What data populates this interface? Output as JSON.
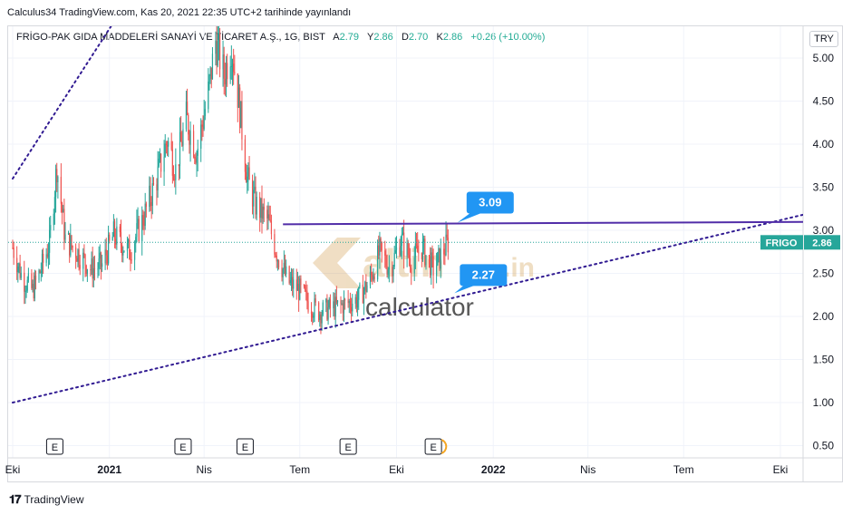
{
  "header": {
    "caption": "Calculus34 TradingView.com, Kas 20, 2021 22:35 UTC+2 tarihinde yayınlandı",
    "symbol_line": "FRİGO-PAK GIDA MADDELERİ SANAYİ VE TİCARET A.Ş., 1G, BIST",
    "ohlc": [
      {
        "label": "A",
        "value": "2.79"
      },
      {
        "label": "Y",
        "value": "2.86"
      },
      {
        "label": "D",
        "value": "2.70"
      },
      {
        "label": "K",
        "value": "2.86"
      }
    ],
    "change": "+0.26 (+10.00%)",
    "currency": "TRY"
  },
  "footer": {
    "brand": "TradingView"
  },
  "watermark": {
    "line1": "altin",
    "line1_suffix": ".in",
    "line2": "calculator"
  },
  "colors": {
    "up": "#26a69a",
    "down": "#ef5350",
    "trend": "#311b92",
    "resistance": "#512da8",
    "callout": "#2196f3",
    "price_tag": "#26a69a"
  },
  "chart_data": {
    "type": "candlestick",
    "symbol": "FRIGO",
    "last_price": 2.86,
    "yticks": [
      0.5,
      1.0,
      1.5,
      2.0,
      2.5,
      3.0,
      3.5,
      4.0,
      4.5,
      5.0
    ],
    "ytick_labels": [
      "0.50",
      "1.00",
      "1.50",
      "2.00",
      "2.50",
      "3.00",
      "3.50",
      "4.00",
      "4.50",
      "5.00"
    ],
    "ylim": [
      0.3,
      5.3
    ],
    "xtick_labels": [
      "Eki",
      "2021",
      "Nis",
      "Tem",
      "Eki",
      "2022",
      "Nis",
      "Tem",
      "Eki"
    ],
    "xtick_bold": [
      false,
      true,
      false,
      false,
      false,
      true,
      false,
      false,
      false
    ],
    "xtick_dates": [
      "2020-10-01",
      "2021-01-01",
      "2021-04-01",
      "2021-07-01",
      "2021-10-01",
      "2022-01-01",
      "2022-04-01",
      "2022-07-01",
      "2022-10-01"
    ],
    "earnings_marker": "E",
    "earnings_dates": [
      "2020-11-10",
      "2021-03-12",
      "2021-05-10",
      "2021-08-16",
      "2021-11-05"
    ],
    "price_series": [
      {
        "date": "2020-10-01",
        "close": 2.8
      },
      {
        "date": "2020-10-10",
        "close": 2.45
      },
      {
        "date": "2020-10-20",
        "close": 2.3
      },
      {
        "date": "2020-10-28",
        "close": 2.55
      },
      {
        "date": "2020-11-05",
        "close": 2.85
      },
      {
        "date": "2020-11-12",
        "close": 3.75
      },
      {
        "date": "2020-11-20",
        "close": 2.9
      },
      {
        "date": "2020-12-01",
        "close": 2.75
      },
      {
        "date": "2020-12-15",
        "close": 2.55
      },
      {
        "date": "2020-12-25",
        "close": 2.6
      },
      {
        "date": "2021-01-05",
        "close": 2.95
      },
      {
        "date": "2021-01-20",
        "close": 2.75
      },
      {
        "date": "2021-02-01",
        "close": 3.1
      },
      {
        "date": "2021-02-15",
        "close": 3.6
      },
      {
        "date": "2021-02-25",
        "close": 4.05
      },
      {
        "date": "2021-03-05",
        "close": 3.7
      },
      {
        "date": "2021-03-15",
        "close": 4.3
      },
      {
        "date": "2021-03-25",
        "close": 3.9
      },
      {
        "date": "2021-04-05",
        "close": 4.6
      },
      {
        "date": "2021-04-12",
        "close": 5.2
      },
      {
        "date": "2021-04-20",
        "close": 4.8
      },
      {
        "date": "2021-04-27",
        "close": 5.15
      },
      {
        "date": "2021-05-05",
        "close": 4.4
      },
      {
        "date": "2021-05-12",
        "close": 3.6
      },
      {
        "date": "2021-05-20",
        "close": 3.3
      },
      {
        "date": "2021-06-01",
        "close": 3.1
      },
      {
        "date": "2021-06-10",
        "close": 2.7
      },
      {
        "date": "2021-06-20",
        "close": 2.4
      },
      {
        "date": "2021-07-01",
        "close": 2.3
      },
      {
        "date": "2021-07-10",
        "close": 2.15
      },
      {
        "date": "2021-07-20",
        "close": 2.05
      },
      {
        "date": "2021-08-01",
        "close": 2.1
      },
      {
        "date": "2021-08-15",
        "close": 2.15
      },
      {
        "date": "2021-08-25",
        "close": 2.2
      },
      {
        "date": "2021-09-05",
        "close": 2.4
      },
      {
        "date": "2021-09-15",
        "close": 2.75
      },
      {
        "date": "2021-09-25",
        "close": 2.55
      },
      {
        "date": "2021-10-05",
        "close": 2.9
      },
      {
        "date": "2021-10-15",
        "close": 2.65
      },
      {
        "date": "2021-10-25",
        "close": 2.8
      },
      {
        "date": "2021-11-05",
        "close": 2.55
      },
      {
        "date": "2021-11-12",
        "close": 2.7
      },
      {
        "date": "2021-11-19",
        "close": 2.86
      }
    ],
    "trendlines": [
      {
        "name": "upper-trendline",
        "style": "dotted",
        "from": {
          "date": "2020-10-01",
          "value": 3.6
        },
        "to": {
          "date": "2021-01-20",
          "value": 5.7
        }
      },
      {
        "name": "support-trendline",
        "style": "dotted",
        "from": {
          "date": "2020-10-01",
          "value": 1.0
        },
        "to": {
          "date": "2022-12-20",
          "value": 3.35
        }
      },
      {
        "name": "resistance-line",
        "style": "solid",
        "from": {
          "date": "2021-06-15",
          "value": 3.07
        },
        "to": {
          "date": "2022-12-20",
          "value": 3.1
        }
      }
    ],
    "callouts": [
      {
        "text": "3.09",
        "anchor": {
          "date": "2021-11-28",
          "value": 3.09
        }
      },
      {
        "text": "2.27",
        "anchor": {
          "date": "2021-11-25",
          "value": 2.27
        }
      }
    ]
  }
}
